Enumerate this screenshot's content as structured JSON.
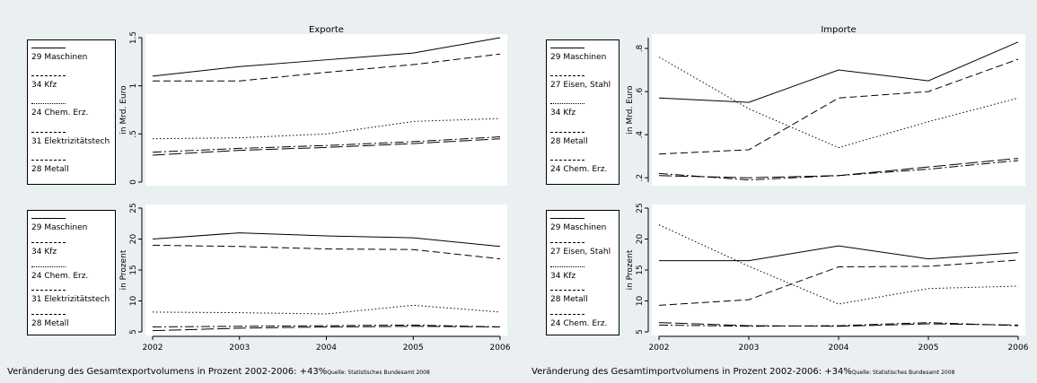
{
  "chart_data": [
    {
      "id": "exp-abs",
      "type": "line",
      "title": "Exporte",
      "ylabel": "in Mrd. Euro",
      "xlabel": "",
      "x": [
        2002,
        2003,
        2004,
        2005,
        2006
      ],
      "show_x_ticks": false,
      "ylim": [
        0,
        1.5
      ],
      "yticks": [
        "0",
        ".5",
        "1",
        "1.5"
      ],
      "ytick_values": [
        0,
        0.5,
        1,
        1.5
      ],
      "series": [
        {
          "name": "29 Maschinen",
          "style": "solid",
          "values": [
            1.1,
            1.2,
            1.27,
            1.34,
            1.5
          ]
        },
        {
          "name": "34 Kfz",
          "style": "dash",
          "values": [
            1.05,
            1.05,
            1.14,
            1.22,
            1.33
          ]
        },
        {
          "name": "24 Chem. Erz.",
          "style": "dot",
          "values": [
            0.45,
            0.46,
            0.5,
            0.63,
            0.66
          ]
        },
        {
          "name": "31 Elektrizitätstech",
          "style": "dashdot",
          "values": [
            0.31,
            0.35,
            0.38,
            0.42,
            0.47
          ]
        },
        {
          "name": "28 Metall",
          "style": "longdash",
          "values": [
            0.28,
            0.33,
            0.36,
            0.4,
            0.45
          ]
        }
      ]
    },
    {
      "id": "imp-abs",
      "type": "line",
      "title": "Importe",
      "ylabel": "in Mrd. Euro",
      "xlabel": "",
      "x": [
        2002,
        2003,
        2004,
        2005,
        2006
      ],
      "show_x_ticks": false,
      "ylim": [
        0.18,
        0.85
      ],
      "yticks": [
        ".2",
        ".4",
        ".6",
        ".8"
      ],
      "ytick_values": [
        0.2,
        0.4,
        0.6,
        0.8
      ],
      "series": [
        {
          "name": "29 Maschinen",
          "style": "solid",
          "values": [
            0.57,
            0.55,
            0.7,
            0.65,
            0.83
          ]
        },
        {
          "name": "27 Eisen, Stahl",
          "style": "dash",
          "values": [
            0.31,
            0.33,
            0.57,
            0.6,
            0.75
          ]
        },
        {
          "name": "34 Kfz",
          "style": "dot",
          "values": [
            0.76,
            0.52,
            0.34,
            0.46,
            0.57
          ]
        },
        {
          "name": "28 Metall",
          "style": "dashdot",
          "values": [
            0.22,
            0.19,
            0.21,
            0.24,
            0.28
          ]
        },
        {
          "name": "24 Chem. Erz.",
          "style": "longdash",
          "values": [
            0.21,
            0.2,
            0.21,
            0.25,
            0.29
          ]
        }
      ]
    },
    {
      "id": "exp-pct",
      "type": "line",
      "title": "",
      "ylabel": "in Prozent",
      "xlabel": "",
      "x": [
        2002,
        2003,
        2004,
        2005,
        2006
      ],
      "show_x_ticks": true,
      "ylim": [
        5,
        25
      ],
      "yticks": [
        "5",
        "10",
        "15",
        "20",
        "25"
      ],
      "ytick_values": [
        5,
        10,
        15,
        20,
        25
      ],
      "series": [
        {
          "name": "29 Maschinen",
          "style": "solid",
          "values": [
            20,
            21,
            20.5,
            20.2,
            18.8
          ]
        },
        {
          "name": "34 Kfz",
          "style": "dash",
          "values": [
            19,
            18.8,
            18.4,
            18.3,
            16.8
          ]
        },
        {
          "name": "24 Chem. Erz.",
          "style": "dot",
          "values": [
            8.2,
            8.1,
            7.9,
            9.3,
            8.2
          ]
        },
        {
          "name": "31 Elektrizitätstech",
          "style": "dashdot",
          "values": [
            5.8,
            5.9,
            6,
            6.1,
            5.8
          ]
        },
        {
          "name": "28 Metall",
          "style": "longdash",
          "values": [
            5.2,
            5.6,
            5.8,
            5.9,
            5.8
          ]
        }
      ]
    },
    {
      "id": "imp-pct",
      "type": "line",
      "title": "",
      "ylabel": "in Prozent",
      "xlabel": "",
      "x": [
        2002,
        2003,
        2004,
        2005,
        2006
      ],
      "show_x_ticks": true,
      "ylim": [
        5,
        25
      ],
      "yticks": [
        "5",
        "10",
        "15",
        "20",
        "25"
      ],
      "ytick_values": [
        5,
        10,
        15,
        20,
        25
      ],
      "series": [
        {
          "name": "29 Maschinen",
          "style": "solid",
          "values": [
            16.5,
            16.5,
            18.9,
            16.8,
            17.8
          ]
        },
        {
          "name": "27 Eisen, Stahl",
          "style": "dash",
          "values": [
            9.3,
            10.2,
            15.5,
            15.6,
            16.6
          ]
        },
        {
          "name": "34 Kfz",
          "style": "dot",
          "values": [
            22.3,
            15.6,
            9.5,
            12,
            12.4
          ]
        },
        {
          "name": "28 Metall",
          "style": "dashdot",
          "values": [
            6.1,
            5.9,
            6,
            6.5,
            6
          ]
        },
        {
          "name": "24 Chem. Erz.",
          "style": "longdash",
          "values": [
            6.5,
            6,
            5.9,
            6.3,
            6.1
          ]
        }
      ]
    }
  ],
  "footnotes": {
    "left": "Veränderung des Gesamtexportvolumens in Prozent 2002-2006: +43%",
    "right": "Veränderung des Gesamtimportvolumens in Prozent 2002-2006: +34%",
    "source": "Quelle: Statistisches Bundesamt 2008"
  }
}
